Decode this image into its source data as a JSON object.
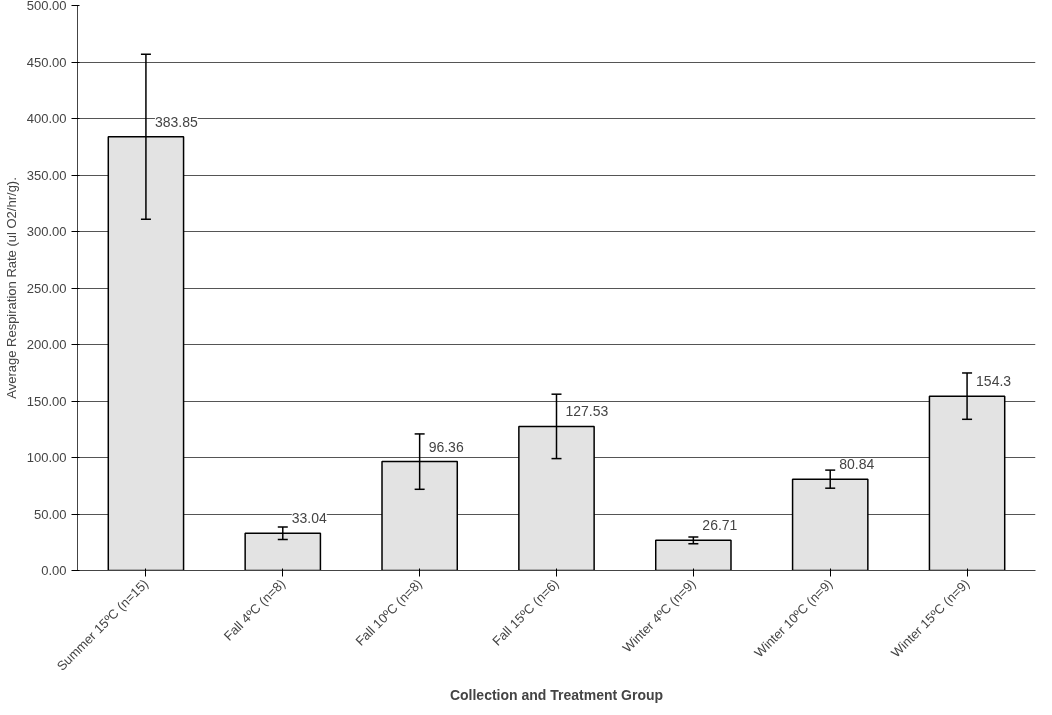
{
  "chart_data": {
    "type": "bar",
    "xlabel": "Collection and Treatment Group",
    "ylabel": "Average Respiration Rate (ul O2/hr/g).",
    "categories": [
      "Summer 15ºC (n=15)",
      "Fall 4ºC (n=8)",
      "Fall 10ºC (n=8)",
      "Fall 15ºC (n=6)",
      "Winter 4ºC (n=9)",
      "Winter 10ºC (n=9)",
      "Winter 15ºC (n=9)"
    ],
    "values": [
      383.85,
      33.04,
      96.36,
      127.53,
      26.71,
      80.84,
      154.3
    ],
    "errors": [
      73,
      5.5,
      24.5,
      28.5,
      3,
      8,
      20.5
    ],
    "color": "#e3e3e3",
    "data_labels": true,
    "ylim": [
      0,
      500
    ],
    "yticks": [
      {
        "value": 0,
        "label": "0.00"
      },
      {
        "value": 50,
        "label": "50.00"
      },
      {
        "value": 100,
        "label": "100.00"
      },
      {
        "value": 150,
        "label": "150.00"
      },
      {
        "value": 200,
        "label": "200.00"
      },
      {
        "value": 250,
        "label": "250.00"
      },
      {
        "value": 300,
        "label": "300.00"
      },
      {
        "value": 350,
        "label": "350.00"
      },
      {
        "value": 400,
        "label": "400.00"
      },
      {
        "value": 450,
        "label": "450.00"
      },
      {
        "value": 500,
        "label": "500.00"
      }
    ],
    "grid": "y"
  }
}
